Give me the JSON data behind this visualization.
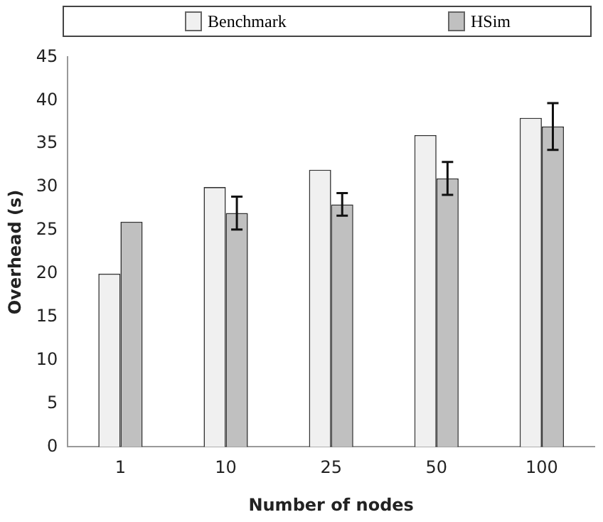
{
  "chart_data": {
    "type": "bar",
    "xlabel": "Number of nodes",
    "ylabel": "Overhead (s)",
    "categories": [
      "1",
      "10",
      "25",
      "50",
      "100"
    ],
    "series": [
      {
        "name": "Benchmark",
        "color": "#f0f0f0",
        "values": [
          20,
          30,
          32,
          36,
          38
        ]
      },
      {
        "name": "HSim",
        "color": "#c0c0c0",
        "values": [
          26,
          27,
          28,
          31,
          37
        ],
        "errors": [
          null,
          1.9,
          1.3,
          1.9,
          2.7
        ]
      }
    ],
    "ylim": [
      0,
      45
    ],
    "yticks": [
      0,
      5,
      10,
      15,
      20,
      25,
      30,
      35,
      40,
      45
    ],
    "grid": false,
    "legend": "top"
  }
}
